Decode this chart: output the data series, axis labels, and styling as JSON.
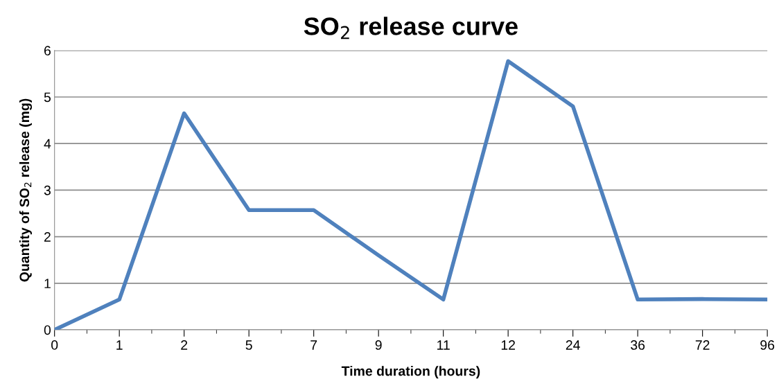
{
  "chart_data": {
    "type": "line",
    "title": "SO$_{2}$ release curve",
    "xlabel": "Time duration (hours)",
    "ylabel": "Quantity of SO$_{2}$ release (mg)",
    "categories": [
      "0",
      "1",
      "2",
      "5",
      "7",
      "9",
      "11",
      "12",
      "24",
      "36",
      "72",
      "96"
    ],
    "series": [
      {
        "color": "#4f81bd",
        "values": [
          0,
          0.65,
          4.65,
          2.57,
          2.57,
          1.6,
          0.65,
          5.77,
          4.8,
          0.65,
          0.66,
          0.65
        ]
      }
    ],
    "ylim": [
      0,
      6
    ],
    "yticks": [
      0,
      1,
      2,
      3,
      4,
      5,
      6
    ],
    "grid": "y",
    "legend": false,
    "marker": "none",
    "line_style": "solid"
  }
}
